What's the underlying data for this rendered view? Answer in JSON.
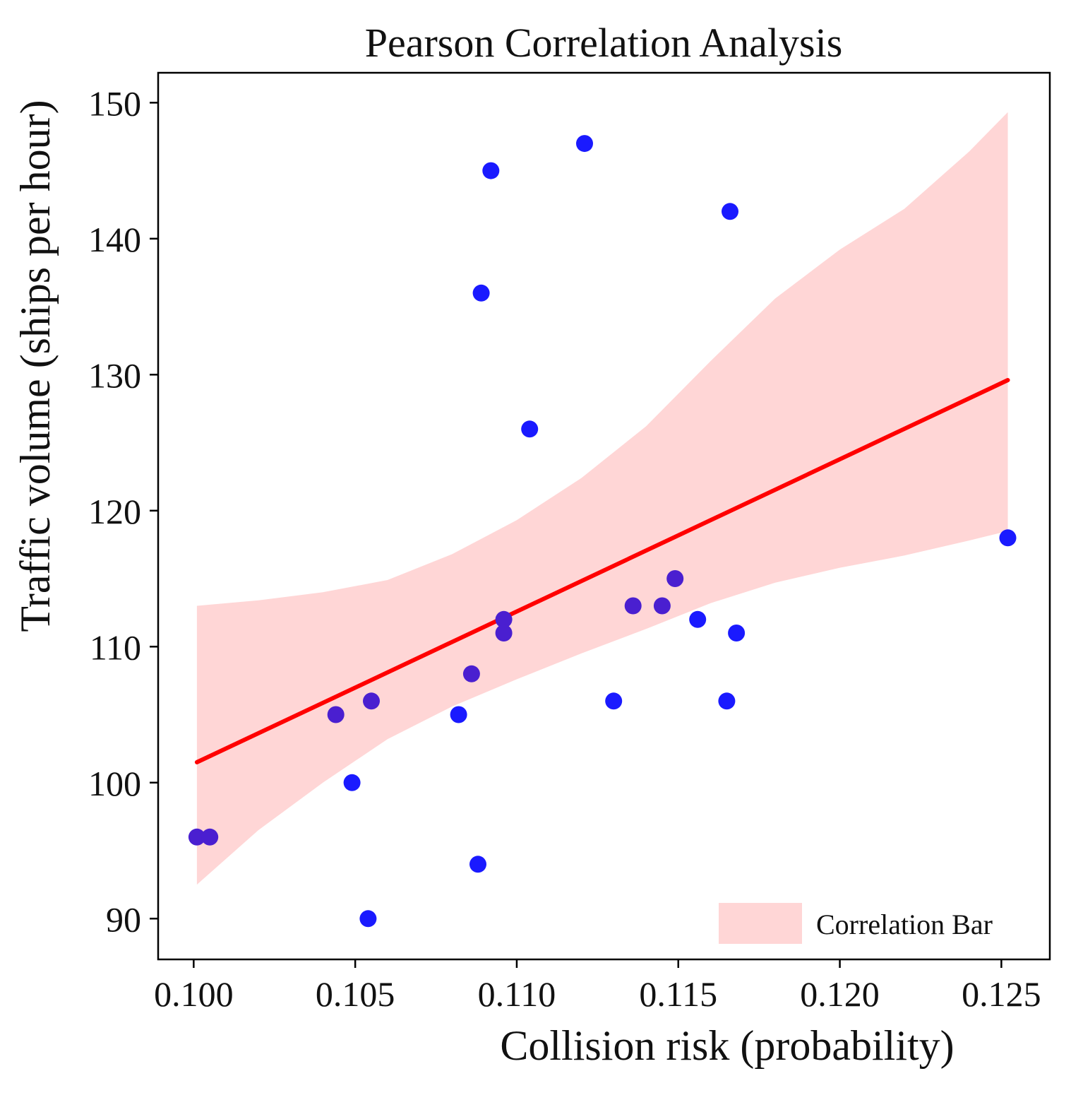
{
  "chart_data": {
    "type": "scatter",
    "title": "Pearson Correlation Analysis",
    "xlabel": "Collision risk (probability)",
    "ylabel": "Traffic volume (ships per hour)",
    "xlim": [
      0.0989,
      0.1265
    ],
    "ylim": [
      87.0,
      152.2
    ],
    "xticks": [
      0.1,
      0.105,
      0.11,
      0.115,
      0.12,
      0.125
    ],
    "xtick_labels": [
      "0.100",
      "0.105",
      "0.110",
      "0.115",
      "0.120",
      "0.125"
    ],
    "yticks": [
      90,
      100,
      110,
      120,
      130,
      140,
      150
    ],
    "ytick_labels": [
      "90",
      "100",
      "110",
      "120",
      "130",
      "140",
      "150"
    ],
    "legend": {
      "label": "Correlation Bar",
      "placement": "lower-right"
    },
    "colors": {
      "points": "#1a1aff",
      "points_overlap": "#4a1fd0",
      "regression_line": "#ff0000",
      "band": "#ffd6d6"
    },
    "points": [
      {
        "x": 0.1001,
        "y": 96
      },
      {
        "x": 0.1005,
        "y": 96
      },
      {
        "x": 0.1044,
        "y": 105
      },
      {
        "x": 0.1049,
        "y": 100
      },
      {
        "x": 0.1055,
        "y": 106
      },
      {
        "x": 0.1054,
        "y": 90
      },
      {
        "x": 0.1082,
        "y": 105
      },
      {
        "x": 0.1086,
        "y": 108
      },
      {
        "x": 0.1088,
        "y": 94
      },
      {
        "x": 0.1089,
        "y": 136
      },
      {
        "x": 0.1092,
        "y": 145
      },
      {
        "x": 0.1096,
        "y": 112
      },
      {
        "x": 0.1096,
        "y": 111
      },
      {
        "x": 0.1104,
        "y": 126
      },
      {
        "x": 0.1121,
        "y": 147
      },
      {
        "x": 0.113,
        "y": 106
      },
      {
        "x": 0.1136,
        "y": 113
      },
      {
        "x": 0.1145,
        "y": 113
      },
      {
        "x": 0.1149,
        "y": 115
      },
      {
        "x": 0.1156,
        "y": 112
      },
      {
        "x": 0.1165,
        "y": 106
      },
      {
        "x": 0.1166,
        "y": 142
      },
      {
        "x": 0.1168,
        "y": 111
      },
      {
        "x": 0.1252,
        "y": 118
      }
    ],
    "regression": {
      "x": [
        0.1001,
        0.1252
      ],
      "y": [
        101.5,
        129.6
      ]
    },
    "band": {
      "x": [
        0.1001,
        0.102,
        0.104,
        0.106,
        0.108,
        0.11,
        0.112,
        0.114,
        0.116,
        0.118,
        0.12,
        0.122,
        0.124,
        0.1252
      ],
      "upper": [
        113.0,
        113.4,
        114.0,
        114.9,
        116.8,
        119.3,
        122.4,
        126.2,
        131.0,
        135.6,
        139.2,
        142.2,
        146.4,
        149.3
      ],
      "lower": [
        92.5,
        96.5,
        100.0,
        103.2,
        105.6,
        107.6,
        109.5,
        111.3,
        113.2,
        114.7,
        115.8,
        116.7,
        117.8,
        118.5
      ]
    }
  }
}
